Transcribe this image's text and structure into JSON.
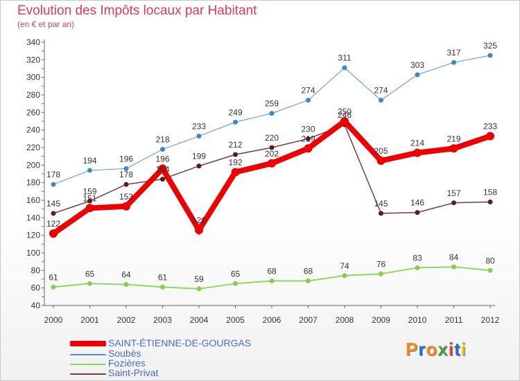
{
  "title": "Evolution des Impôts locaux par Habitant",
  "subtitle": "(en € et par an)",
  "logo": {
    "text": "Proxiti",
    "colors": [
      "#f08a1c",
      "#1e73c8",
      "#f08a1c",
      "#3aa63a",
      "#e23a3a",
      "#1e73c8",
      "#f0b21c"
    ]
  },
  "chart_data": {
    "type": "line",
    "title": "Evolution des Impôts locaux par Habitant",
    "ylabel": "(en € et par an)",
    "xlabel": "",
    "x": [
      "2000",
      "2001",
      "2002",
      "2003",
      "2004",
      "2005",
      "2006",
      "2007",
      "2008",
      "2009",
      "2010",
      "2011",
      "2012"
    ],
    "ylim": [
      40,
      340
    ],
    "yticks": [
      "40",
      "60",
      "80",
      "100",
      "120",
      "140",
      "160",
      "180",
      "200",
      "220",
      "240",
      "260",
      "280",
      "300",
      "320",
      "340"
    ],
    "grid": false,
    "legend_position": "bottom-left",
    "series": [
      {
        "name": "Soubès",
        "color": "#4f94c8",
        "marker": "#3c88c8",
        "values": [
          178,
          194,
          196,
          218,
          233,
          249,
          259,
          274,
          311,
          274,
          303,
          317,
          325
        ]
      },
      {
        "name": "Fozières",
        "color": "#8fd860",
        "marker": "#84cf50",
        "values": [
          61,
          65,
          64,
          61,
          59,
          65,
          68,
          68,
          74,
          76,
          83,
          84,
          80
        ]
      },
      {
        "name": "Saint-Privat",
        "color": "#7a3a44",
        "marker": "#5a1c22",
        "values": [
          145,
          159,
          178,
          184,
          199,
          212,
          220,
          230,
          246,
          145,
          146,
          157,
          158
        ]
      },
      {
        "name": "SAINT-ÉTIENNE-DE-GOURGAS",
        "color": "#ee0000",
        "marker": "#ee0000",
        "values": [
          122,
          151,
          153,
          196,
          126,
          192,
          202,
          219,
          250,
          205,
          214,
          219,
          233
        ]
      }
    ],
    "data_labels": [
      [
        "178",
        "194",
        "196",
        "218",
        "233",
        "249",
        "259",
        "274",
        "311",
        "274",
        "303",
        "317",
        "325"
      ],
      [
        "61",
        "65",
        "64",
        "61",
        "59",
        "65",
        "68",
        "68",
        "74",
        "76",
        "83",
        "84",
        "80"
      ],
      [
        "145",
        "159",
        "178",
        "184",
        "199",
        "212",
        "220",
        "230",
        "246",
        "145",
        "146",
        "157",
        "158"
      ],
      [
        "122",
        "151",
        "153",
        "196",
        "126",
        "192",
        "202",
        "219",
        "250",
        "205",
        "214",
        "219",
        "233"
      ]
    ]
  },
  "legend": [
    {
      "label": "SAINT-ÉTIENNE-DE-GOURGAS",
      "color": "#ee0000"
    },
    {
      "label": "Soubès",
      "color": "#4f94c8"
    },
    {
      "label": "Fozières",
      "color": "#8fd860"
    },
    {
      "label": "Saint-Privat",
      "color": "#7a3a44"
    }
  ]
}
